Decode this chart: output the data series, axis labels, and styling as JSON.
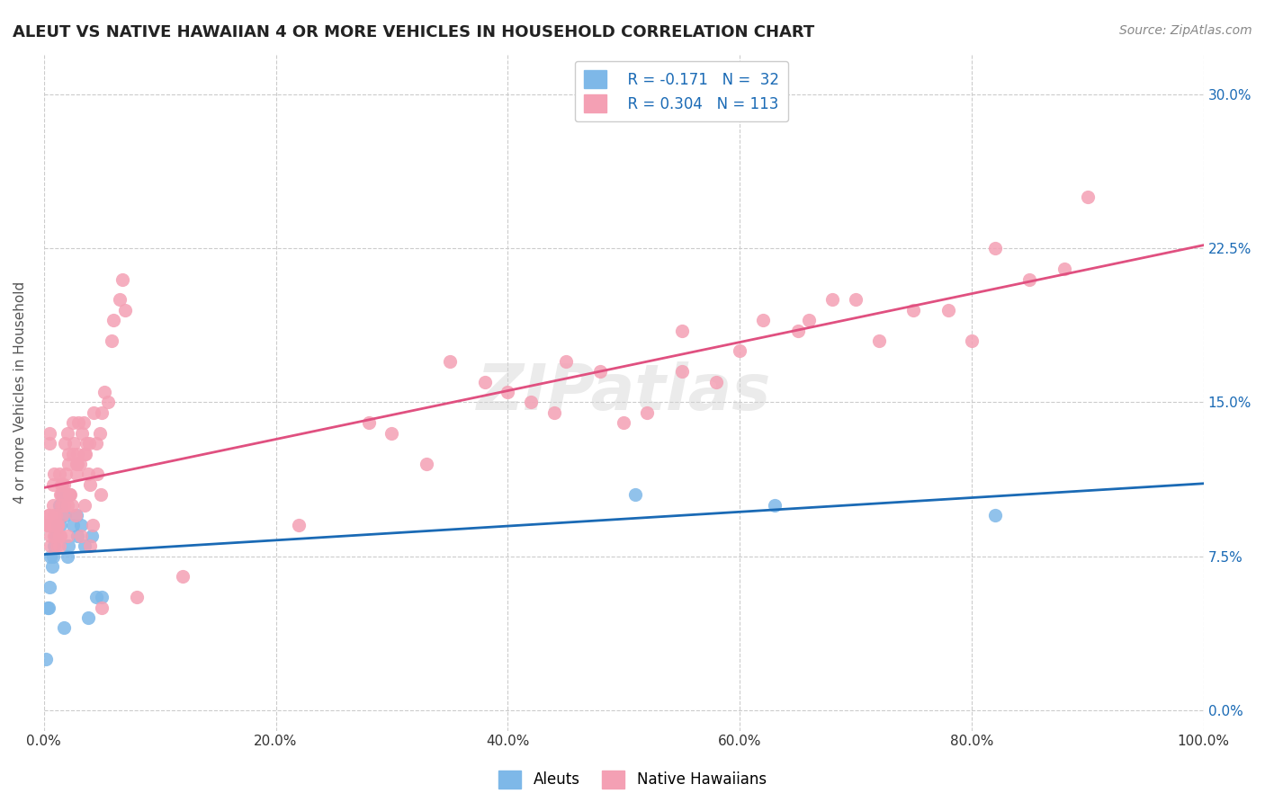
{
  "title": "ALEUT VS NATIVE HAWAIIAN 4 OR MORE VEHICLES IN HOUSEHOLD CORRELATION CHART",
  "source": "Source: ZipAtlas.com",
  "xlabel": "",
  "ylabel": "4 or more Vehicles in Household",
  "xlim": [
    0.0,
    100.0
  ],
  "ylim": [
    -1.0,
    32.0
  ],
  "yticks": [
    0.0,
    7.5,
    15.0,
    22.5,
    30.0
  ],
  "xticks": [
    0.0,
    20.0,
    40.0,
    60.0,
    80.0,
    100.0
  ],
  "legend_r1": "R = -0.171",
  "legend_n1": "N =  32",
  "legend_r2": "R = 0.304",
  "legend_n2": "N = 113",
  "aleut_color": "#7EB8E8",
  "hawaiian_color": "#F4A0B4",
  "trend_blue": "#1a6ab5",
  "trend_pink": "#E05080",
  "background": "#ffffff",
  "watermark": "ZIPatlas",
  "aleut_x": [
    1.2,
    0.8,
    2.1,
    1.5,
    0.5,
    1.8,
    0.3,
    2.5,
    1.0,
    3.2,
    0.7,
    1.3,
    4.1,
    2.8,
    1.6,
    0.9,
    3.5,
    1.1,
    2.2,
    0.6,
    5.0,
    1.4,
    0.4,
    2.9,
    1.7,
    3.8,
    0.2,
    4.5,
    2.0,
    51.0,
    63.0,
    82.0
  ],
  "aleut_y": [
    9.0,
    7.5,
    8.0,
    10.0,
    6.0,
    9.5,
    5.0,
    9.0,
    8.5,
    9.0,
    7.0,
    10.0,
    8.5,
    9.5,
    10.5,
    8.0,
    8.0,
    8.5,
    10.5,
    7.5,
    5.5,
    9.0,
    5.0,
    8.5,
    4.0,
    4.5,
    2.5,
    5.5,
    7.5,
    10.5,
    10.0,
    9.5
  ],
  "hawaiian_x": [
    0.5,
    1.2,
    2.0,
    1.5,
    0.8,
    3.0,
    1.0,
    2.5,
    0.3,
    1.8,
    4.0,
    2.2,
    1.3,
    0.9,
    3.5,
    2.8,
    1.6,
    0.7,
    5.0,
    1.4,
    2.9,
    0.6,
    3.8,
    1.7,
    4.5,
    0.4,
    2.1,
    1.1,
    6.0,
    3.2,
    0.2,
    4.8,
    2.3,
    1.9,
    0.5,
    3.6,
    2.7,
    1.5,
    5.5,
    0.8,
    4.2,
    2.0,
    1.3,
    3.1,
    0.9,
    2.6,
    1.2,
    4.9,
    3.4,
    0.6,
    2.4,
    1.7,
    5.8,
    0.4,
    3.7,
    2.1,
    1.0,
    6.5,
    2.9,
    1.4,
    4.6,
    0.7,
    3.3,
    2.2,
    1.6,
    5.2,
    0.9,
    4.0,
    2.5,
    1.1,
    6.8,
    3.5,
    2.0,
    1.3,
    7.0,
    4.3,
    0.5,
    3.9,
    2.8,
    1.5,
    28.0,
    35.0,
    42.0,
    48.0,
    55.0,
    62.0,
    68.0,
    75.0,
    80.0,
    85.0,
    90.0,
    38.0,
    52.0,
    66.0,
    45.0,
    58.0,
    72.0,
    30.0,
    40.0,
    50.0,
    60.0,
    70.0,
    82.0,
    88.0,
    78.0,
    65.0,
    55.0,
    44.0,
    33.0,
    22.0,
    12.0,
    8.0,
    5.0
  ],
  "hawaiian_y": [
    13.5,
    9.0,
    8.5,
    11.0,
    10.0,
    14.0,
    9.5,
    12.5,
    9.0,
    13.0,
    8.0,
    10.5,
    11.5,
    9.5,
    10.0,
    12.0,
    11.0,
    9.0,
    14.5,
    10.5,
    12.5,
    8.5,
    11.5,
    10.0,
    13.0,
    9.5,
    12.0,
    8.0,
    19.0,
    8.5,
    9.0,
    13.5,
    10.5,
    11.5,
    13.0,
    12.5,
    9.5,
    10.0,
    15.0,
    11.0,
    9.0,
    13.5,
    8.5,
    12.0,
    11.5,
    13.0,
    9.0,
    10.5,
    14.0,
    8.0,
    10.0,
    11.0,
    18.0,
    9.5,
    13.0,
    12.5,
    9.0,
    20.0,
    12.0,
    8.5,
    11.5,
    9.0,
    13.5,
    10.5,
    9.5,
    15.5,
    8.5,
    11.0,
    14.0,
    9.0,
    21.0,
    12.5,
    10.0,
    8.0,
    19.5,
    14.5,
    9.0,
    13.0,
    11.5,
    10.5,
    14.0,
    17.0,
    15.0,
    16.5,
    18.5,
    19.0,
    20.0,
    19.5,
    18.0,
    21.0,
    25.0,
    16.0,
    14.5,
    19.0,
    17.0,
    16.0,
    18.0,
    13.5,
    15.5,
    14.0,
    17.5,
    20.0,
    22.5,
    21.5,
    19.5,
    18.5,
    16.5,
    14.5,
    12.0,
    9.0,
    6.5,
    5.5,
    5.0
  ]
}
